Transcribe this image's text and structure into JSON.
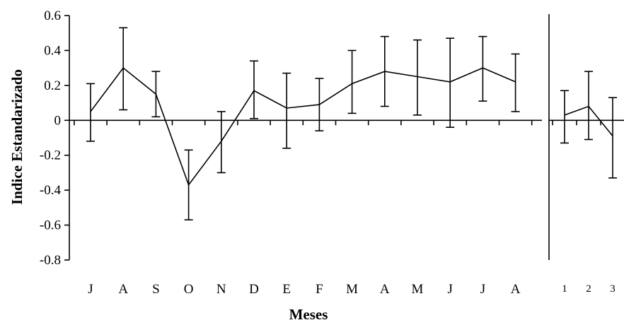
{
  "chart_data": {
    "type": "line",
    "xlabel": "Meses",
    "ylabel": "Indice Estandarizado",
    "ylim": [
      -0.8,
      0.6
    ],
    "yticks": [
      "0.6",
      "0.4",
      "0.2",
      "0",
      "-0.2",
      "-0.4",
      "-0.6",
      "-0.8"
    ],
    "grid": false,
    "panels": [
      {
        "categories": [
          "J",
          "A",
          "S",
          "O",
          "N",
          "D",
          "E",
          "F",
          "M",
          "A",
          "M",
          "J",
          "J",
          "A"
        ],
        "values": [
          0.05,
          0.3,
          0.15,
          -0.37,
          -0.12,
          0.17,
          0.07,
          0.09,
          0.21,
          0.28,
          0.25,
          0.22,
          0.3,
          0.22
        ],
        "err_low": [
          -0.12,
          0.06,
          0.02,
          -0.57,
          -0.3,
          0.01,
          -0.16,
          -0.06,
          0.04,
          0.08,
          0.03,
          -0.04,
          0.11,
          0.05
        ],
        "err_high": [
          0.21,
          0.53,
          0.28,
          -0.17,
          0.05,
          0.34,
          0.27,
          0.24,
          0.4,
          0.48,
          0.46,
          0.47,
          0.48,
          0.38
        ]
      },
      {
        "categories": [
          "1",
          "2",
          "3"
        ],
        "values": [
          0.03,
          0.08,
          -0.09
        ],
        "err_low": [
          -0.13,
          -0.11,
          -0.33
        ],
        "err_high": [
          0.17,
          0.28,
          0.13
        ]
      }
    ]
  }
}
